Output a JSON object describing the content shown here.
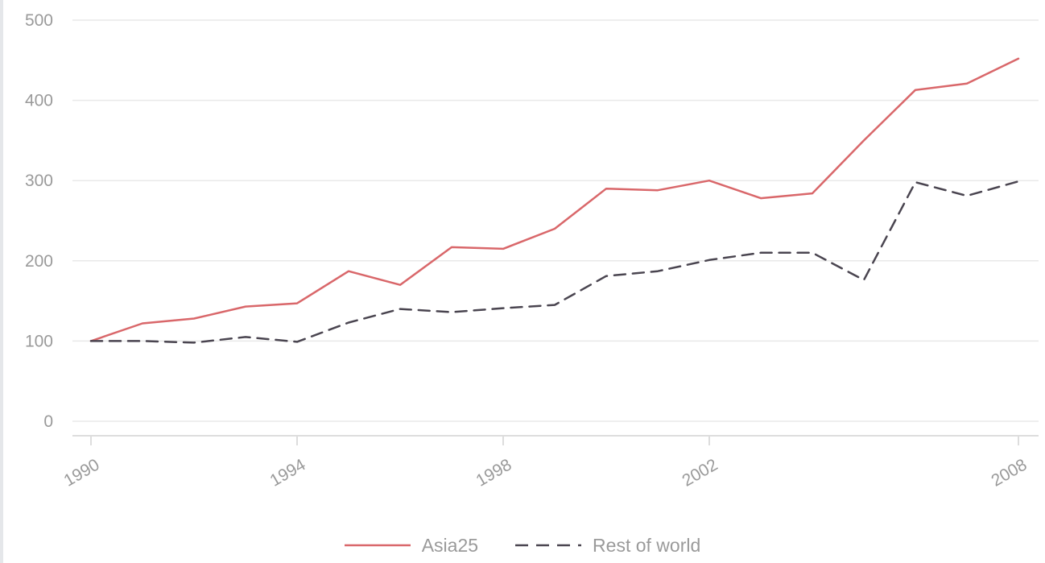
{
  "colors": {
    "asia": "#d9676a",
    "rest": "#4a4550",
    "grid": "#e9e9e9",
    "axis": "#dddddd",
    "tick_text": "#9a9a9a"
  },
  "chart_data": {
    "type": "line",
    "x": [
      1990,
      1991,
      1992,
      1993,
      1994,
      1995,
      1996,
      1997,
      1998,
      1999,
      2000,
      2001,
      2002,
      2003,
      2004,
      2005,
      2006,
      2007,
      2008
    ],
    "x_ticks": [
      "1990",
      "1994",
      "1998",
      "2002",
      "2008"
    ],
    "y_ticks": [
      "0",
      "100",
      "200",
      "300",
      "400",
      "500"
    ],
    "ylim": [
      0,
      500
    ],
    "grid": true,
    "legend_position": "bottom-center",
    "series": [
      {
        "name": "Asia25",
        "style": "solid",
        "color": "#d9676a",
        "values": [
          100,
          122,
          128,
          143,
          147,
          187,
          170,
          217,
          215,
          240,
          290,
          288,
          300,
          278,
          284,
          350,
          413,
          421,
          452
        ]
      },
      {
        "name": "Rest of world",
        "style": "dashed",
        "color": "#4a4550",
        "values": [
          100,
          100,
          98,
          105,
          99,
          123,
          140,
          136,
          141,
          145,
          181,
          187,
          201,
          210,
          210,
          176,
          298,
          281,
          299
        ]
      }
    ]
  }
}
